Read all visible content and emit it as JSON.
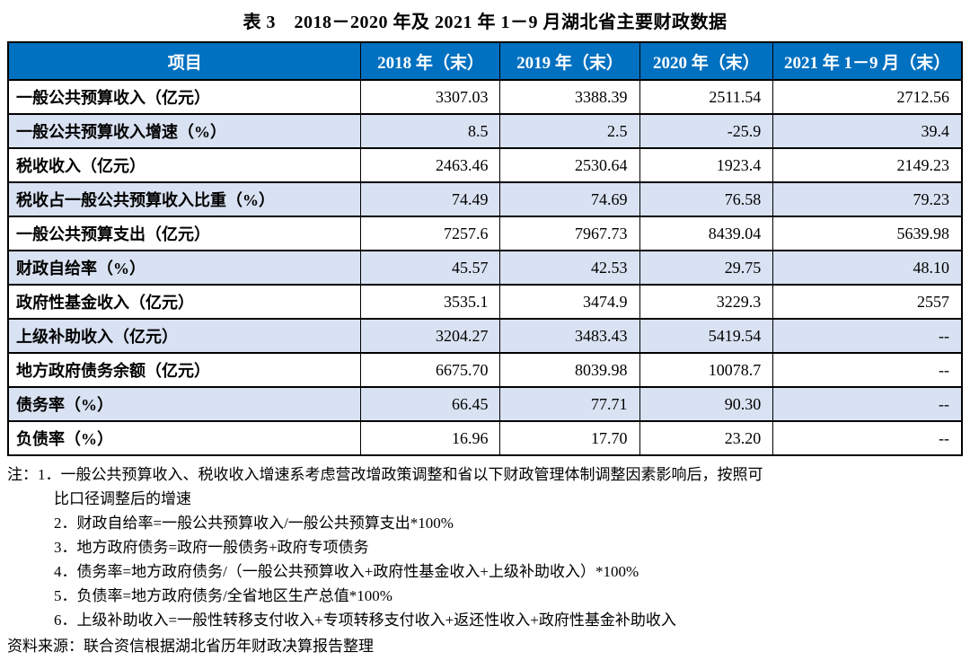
{
  "title": "表 3　2018－2020 年及 2021 年 1－9 月湖北省主要财政数据",
  "colors": {
    "header_bg": "#0070C0",
    "header_text": "#FFFFFF",
    "row_shaded": "#D9E2F2",
    "border": "#000000"
  },
  "table": {
    "headers": [
      "项目",
      "2018 年（末）",
      "2019 年（末）",
      "2020 年（末）",
      "2021 年 1－9 月（末）"
    ],
    "rows": [
      {
        "label": "一般公共预算收入（亿元）",
        "values": [
          "3307.03",
          "3388.39",
          "2511.54",
          "2712.56"
        ]
      },
      {
        "label": "一般公共预算收入增速（%）",
        "values": [
          "8.5",
          "2.5",
          "-25.9",
          "39.4"
        ]
      },
      {
        "label": "税收收入（亿元）",
        "values": [
          "2463.46",
          "2530.64",
          "1923.4",
          "2149.23"
        ]
      },
      {
        "label": "税收占一般公共预算收入比重（%）",
        "values": [
          "74.49",
          "74.69",
          "76.58",
          "79.23"
        ]
      },
      {
        "label": "一般公共预算支出（亿元）",
        "values": [
          "7257.6",
          "7967.73",
          "8439.04",
          "5639.98"
        ]
      },
      {
        "label": "财政自给率（%）",
        "values": [
          "45.57",
          "42.53",
          "29.75",
          "48.10"
        ]
      },
      {
        "label": "政府性基金收入（亿元）",
        "values": [
          "3535.1",
          "3474.9",
          "3229.3",
          "2557"
        ]
      },
      {
        "label": "上级补助收入（亿元）",
        "values": [
          "3204.27",
          "3483.43",
          "5419.54",
          "--"
        ]
      },
      {
        "label": "地方政府债务余额（亿元）",
        "values": [
          "6675.70",
          "8039.98",
          "10078.7",
          "--"
        ]
      },
      {
        "label": "债务率（%）",
        "values": [
          "66.45",
          "77.71",
          "90.30",
          "--"
        ]
      },
      {
        "label": "负债率（%）",
        "values": [
          "16.96",
          "17.70",
          "23.20",
          "--"
        ]
      }
    ]
  },
  "notes": {
    "lines": [
      {
        "text": "注：1．一般公共预算收入、税收收入增速系考虑营改增政策调整和省以下财政管理体制调整因素影响后，按照可"
      },
      {
        "text": "比口径调整后的增速"
      },
      {
        "text": "2．财政自给率=一般公共预算收入/一般公共预算支出*100%"
      },
      {
        "text": "3．地方政府债务=政府一般债务+政府专项债务"
      },
      {
        "text": "4．债务率=地方政府债务/（一般公共预算收入+政府性基金收入+上级补助收入）*100%"
      },
      {
        "text": "5．负债率=地方政府债务/全省地区生产总值*100%"
      },
      {
        "text": "6．上级补助收入=一般性转移支付收入+专项转移支付收入+返还性收入+政府性基金补助收入"
      }
    ],
    "source": "资料来源：联合资信根据湖北省历年财政决算报告整理"
  }
}
